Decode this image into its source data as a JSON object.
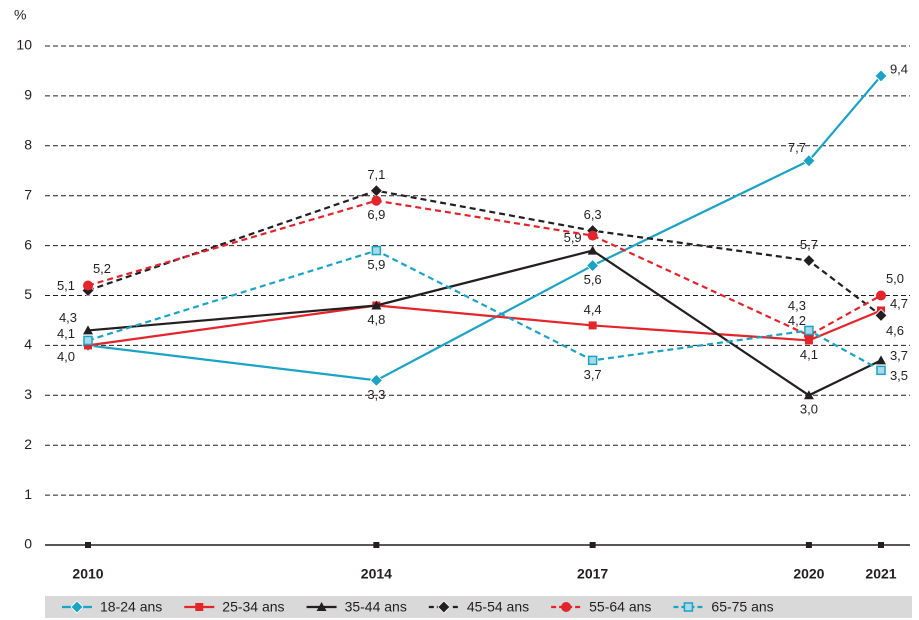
{
  "chart_data": {
    "type": "line",
    "y_label": "%",
    "x": [
      2010,
      2014,
      2017,
      2020,
      2021
    ],
    "xlim": [
      2010,
      2021
    ],
    "xticks": [
      2010,
      2014,
      2017,
      2020,
      2021
    ],
    "ylim": [
      0,
      10
    ],
    "yticks": [
      0,
      1,
      2,
      3,
      4,
      5,
      6,
      7,
      8,
      9,
      10
    ],
    "grid": true,
    "legend": "bottom",
    "series": [
      {
        "name": "18-24 ans",
        "color": "#1aa3c4",
        "dash": false,
        "marker": "diamond",
        "values": [
          4.0,
          3.3,
          5.6,
          7.7,
          9.4
        ],
        "value_labels": [
          "4,0",
          "3,3",
          "5,6",
          "7,7",
          "9,4"
        ]
      },
      {
        "name": "25-34 ans",
        "color": "#e3242b",
        "dash": false,
        "marker": "square",
        "values": [
          4.0,
          4.8,
          4.4,
          4.1,
          4.7
        ],
        "value_labels": [
          null,
          "4,8",
          "4,4",
          "4,1",
          "4,7"
        ]
      },
      {
        "name": "35-44 ans",
        "color": "#231f20",
        "dash": false,
        "marker": "triangle",
        "values": [
          4.3,
          4.8,
          5.9,
          3.0,
          3.7
        ],
        "value_labels": [
          "4,3",
          null,
          "5,9",
          "3,0",
          "3,7"
        ]
      },
      {
        "name": "45-54 ans",
        "color": "#231f20",
        "dash": true,
        "marker": "diamond",
        "values": [
          5.1,
          7.1,
          6.3,
          5.7,
          4.6
        ],
        "value_labels": [
          "5,1",
          "7,1",
          "6,3",
          "5,7",
          "4,6"
        ]
      },
      {
        "name": "55-64 ans",
        "color": "#e3242b",
        "dash": true,
        "marker": "circle",
        "values": [
          5.2,
          6.9,
          6.2,
          4.2,
          5.0
        ],
        "value_labels": [
          "5,2",
          "6,9",
          null,
          "4,2",
          "5,0"
        ]
      },
      {
        "name": "65-75 ans",
        "color": "#1aa3c4",
        "dash": true,
        "marker": "open-square",
        "values": [
          4.1,
          5.9,
          3.7,
          4.3,
          3.5
        ],
        "value_labels": [
          "4,1",
          "5,9",
          "3,7",
          "4,3",
          "3,5"
        ]
      }
    ]
  }
}
